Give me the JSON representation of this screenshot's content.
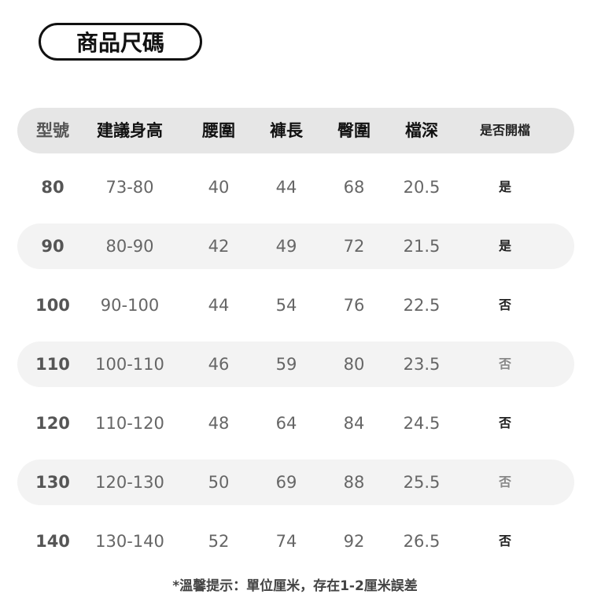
{
  "title": "商品尺碼",
  "headers": [
    "型號",
    "建議身高",
    "腰圍",
    "褲長",
    "臀圍",
    "檔深",
    "是否開檔"
  ],
  "rows": [
    [
      "80",
      "73-80",
      "40",
      "44",
      "68",
      "20.5",
      "是"
    ],
    [
      "90",
      "80-90",
      "42",
      "49",
      "72",
      "21.5",
      "是"
    ],
    [
      "100",
      "90-100",
      "44",
      "54",
      "76",
      "22.5",
      "否"
    ],
    [
      "110",
      "100-110",
      "46",
      "59",
      "80",
      "23.5",
      "否"
    ],
    [
      "120",
      "110-120",
      "48",
      "64",
      "84",
      "24.5",
      "否"
    ],
    [
      "130",
      "120-130",
      "50",
      "69",
      "88",
      "25.5",
      "否"
    ],
    [
      "140",
      "130-140",
      "52",
      "74",
      "92",
      "26.5",
      "否"
    ]
  ],
  "note": "*溫馨提示：單位厘米，存在1-2厘米誤差",
  "colors": {
    "header_bg": "#e6e6e6",
    "stripe_bg": "#f3f3f3",
    "text": "#666666"
  }
}
